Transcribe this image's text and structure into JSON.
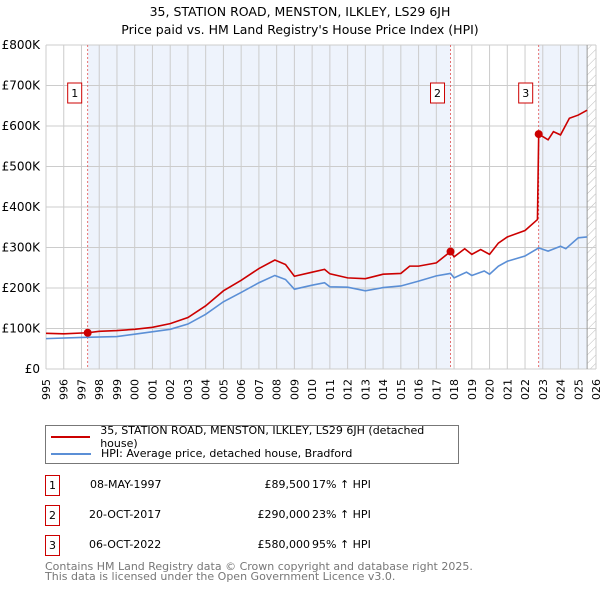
{
  "chart_data": {
    "type": "line",
    "title": "35, STATION ROAD, MENSTON, ILKLEY, LS29 6JH",
    "subtitle": "Price paid vs. HM Land Registry's House Price Index (HPI)",
    "xlim": [
      1995,
      2026
    ],
    "ylim": [
      0,
      800000
    ],
    "x_ticks": [
      "1995",
      "1996",
      "1997",
      "1998",
      "1999",
      "2000",
      "2001",
      "2002",
      "2003",
      "2004",
      "2005",
      "2006",
      "2007",
      "2008",
      "2009",
      "2010",
      "2011",
      "2012",
      "2013",
      "2014",
      "2015",
      "2016",
      "2017",
      "2018",
      "2019",
      "2020",
      "2021",
      "2022",
      "2023",
      "2024",
      "2025",
      "2026"
    ],
    "y_ticks": [
      {
        "v": 0,
        "l": "£0"
      },
      {
        "v": 100000,
        "l": "£100K"
      },
      {
        "v": 200000,
        "l": "£200K"
      },
      {
        "v": 300000,
        "l": "£300K"
      },
      {
        "v": 400000,
        "l": "£400K"
      },
      {
        "v": 500000,
        "l": "£500K"
      },
      {
        "v": 600000,
        "l": "£600K"
      },
      {
        "v": 700000,
        "l": "£700K"
      },
      {
        "v": 800000,
        "l": "£800K"
      }
    ],
    "grid": true,
    "series": [
      {
        "name": "35, STATION ROAD, MENSTON, ILKLEY, LS29 6JH (detached house)",
        "color": "#cc0000",
        "x": [
          1995,
          1996,
          1997.35,
          1998,
          1999,
          2000,
          2001,
          2002,
          2003,
          2004,
          2005,
          2006,
          2007,
          2007.9,
          2008.5,
          2009,
          2010,
          2010.7,
          2011,
          2012,
          2013,
          2014,
          2015,
          2015.5,
          2016,
          2017,
          2017.8,
          2018,
          2018.6,
          2019,
          2019.5,
          2020,
          2020.5,
          2021,
          2022,
          2022.7,
          2022.77,
          2023,
          2023.3,
          2023.6,
          2024,
          2024.5,
          2025,
          2025.5
        ],
        "y": [
          88000,
          87000,
          89500,
          93000,
          95000,
          98000,
          103000,
          112000,
          127000,
          156000,
          193000,
          219000,
          248000,
          269000,
          258000,
          229000,
          239000,
          246000,
          235000,
          225000,
          223000,
          234000,
          236000,
          254000,
          254000,
          262000,
          290000,
          277000,
          297000,
          283000,
          295000,
          283000,
          311000,
          326000,
          342000,
          369000,
          580000,
          574000,
          566000,
          586000,
          578000,
          619000,
          627000,
          639000
        ]
      },
      {
        "name": "HPI: Average price, detached house, Bradford",
        "color": "#5b8fd6",
        "x": [
          1995,
          1997,
          1999,
          2000,
          2002,
          2003,
          2004,
          2005,
          2006,
          2007,
          2007.9,
          2008.5,
          2009,
          2010,
          2010.7,
          2011,
          2012,
          2013,
          2014,
          2015,
          2016,
          2017,
          2017.8,
          2018,
          2018.7,
          2019,
          2019.7,
          2020,
          2020.5,
          2021,
          2022,
          2022.77,
          2023.3,
          2024,
          2024.3,
          2025,
          2025.5
        ],
        "y": [
          75000,
          78000,
          80000,
          86000,
          98000,
          111000,
          135000,
          166000,
          189000,
          213000,
          231000,
          221000,
          197000,
          207000,
          213000,
          203000,
          202000,
          193000,
          201000,
          205000,
          217000,
          230000,
          236000,
          225000,
          239000,
          231000,
          242000,
          234000,
          254000,
          266000,
          279000,
          299000,
          291000,
          303000,
          297000,
          324000,
          326000
        ]
      }
    ],
    "sales": [
      {
        "id": "1",
        "date": "08-MAY-1997",
        "x": 1997.35,
        "price": 89500,
        "price_label": "£89,500",
        "hpi": "17% ↑ HPI"
      },
      {
        "id": "2",
        "date": "20-OCT-2017",
        "x": 2017.8,
        "price": 290000,
        "price_label": "£290,000",
        "hpi": "23% ↑ HPI"
      },
      {
        "id": "3",
        "date": "06-OCT-2022",
        "x": 2022.77,
        "price": 580000,
        "price_label": "£580,000",
        "hpi": "95% ↑ HPI"
      }
    ],
    "data_end": 2025.5
  },
  "footer": {
    "line1": "Contains HM Land Registry data © Crown copyright and database right 2025.",
    "line2": "This data is licensed under the Open Government Licence v3.0."
  }
}
